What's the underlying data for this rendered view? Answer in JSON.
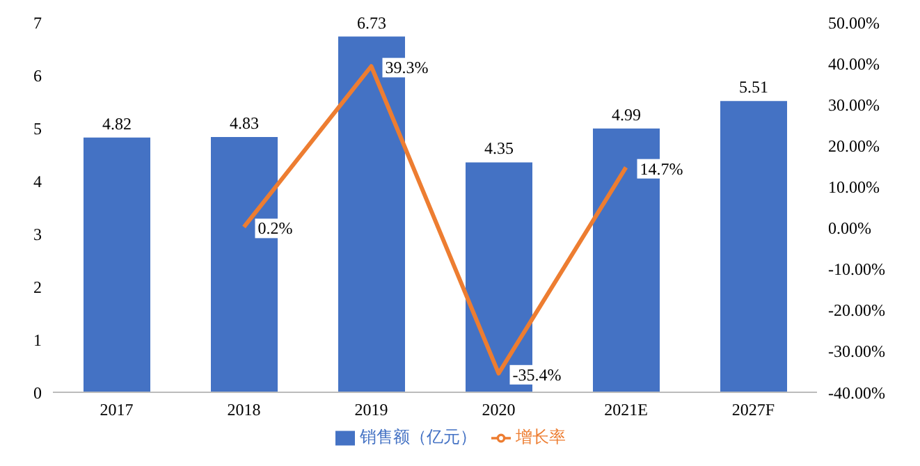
{
  "chart_data": {
    "type": "bar",
    "categories": [
      "2017",
      "2018",
      "2019",
      "2020",
      "2021E",
      "2027F"
    ],
    "series": [
      {
        "name": "销售额（亿元）",
        "color": "#4472c4",
        "values": [
          4.82,
          4.83,
          6.73,
          4.35,
          4.99,
          5.51
        ],
        "value_labels": [
          "4.82",
          "4.83",
          "6.73",
          "4.35",
          "4.99",
          "5.51"
        ]
      },
      {
        "name": "增长率",
        "type": "line",
        "axis": "y2",
        "color": "#ed7d31",
        "values": [
          null,
          0.2,
          39.3,
          -35.4,
          14.7,
          null
        ],
        "value_labels": [
          null,
          "0.2%",
          "39.3%",
          "-35.4%",
          "14.7%",
          null
        ]
      }
    ],
    "ylim": [
      0,
      7
    ],
    "yticks": [
      0,
      1,
      2,
      3,
      4,
      5,
      6,
      7
    ],
    "y2lim": [
      -40,
      50
    ],
    "y2ticks": [
      {
        "value": -40,
        "label": "-40.00%"
      },
      {
        "value": -30,
        "label": "-30.00%"
      },
      {
        "value": -20,
        "label": "-20.00%"
      },
      {
        "value": -10,
        "label": "-10.00%"
      },
      {
        "value": 0,
        "label": "0.00%"
      },
      {
        "value": 10,
        "label": "10.00%"
      },
      {
        "value": 20,
        "label": "20.00%"
      },
      {
        "value": 30,
        "label": "30.00%"
      },
      {
        "value": 40,
        "label": "40.00%"
      },
      {
        "value": 50,
        "label": "50.00%"
      }
    ],
    "legend": "bottom",
    "grid": false,
    "marker": "none",
    "line_style": "solid"
  }
}
